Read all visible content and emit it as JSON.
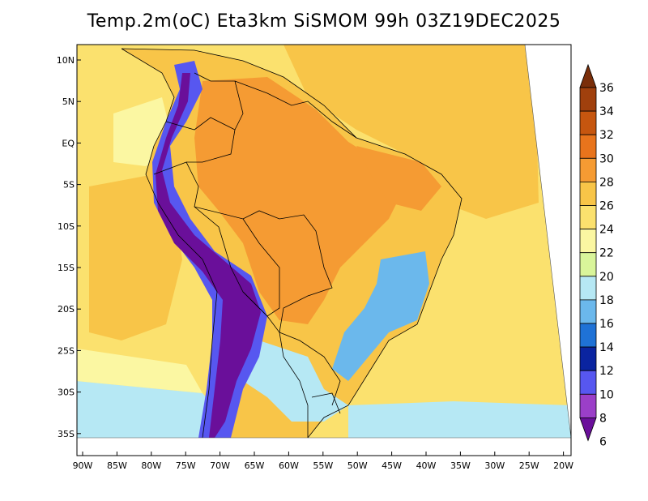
{
  "title": "Temp.2m(oC) Eta3km SiSMOM 99h 03Z19DEC2025",
  "axes": {
    "lat_labels": [
      "10N",
      "5N",
      "EQ",
      "5S",
      "10S",
      "15S",
      "20S",
      "25S",
      "30S",
      "35S"
    ],
    "lon_labels": [
      "90W",
      "85W",
      "80W",
      "75W",
      "70W",
      "65W",
      "60W",
      "55W",
      "50W",
      "45W",
      "40W",
      "35W",
      "30W",
      "25W",
      "20W"
    ]
  },
  "colorbar": {
    "labels": [
      "36",
      "34",
      "32",
      "30",
      "28",
      "26",
      "24",
      "22",
      "20",
      "18",
      "16",
      "14",
      "12",
      "10",
      "8",
      "6"
    ],
    "colors": [
      "#7a2e0a",
      "#a0400d",
      "#c6560f",
      "#e8741c",
      "#f59b33",
      "#f8c548",
      "#fbe16e",
      "#fbf7a2",
      "#d9f59a",
      "#b6e8f4",
      "#6bb8ec",
      "#1f72d6",
      "#0a24a0",
      "#5757f0",
      "#9b3fc8",
      "#6a0f9a"
    ]
  },
  "map_colors": {
    "ocean_warm": "#f8c548",
    "ocean_mid": "#fbe16e",
    "ocean_cool": "#fbf7a2",
    "ocean_south": "#b6e8f4",
    "land_hot": "#f59b33",
    "land_warm": "#f8c548",
    "andes_cold": "#6a0f9a",
    "andes_mid": "#5757f0",
    "southeast_cool": "#6bb8ec"
  }
}
